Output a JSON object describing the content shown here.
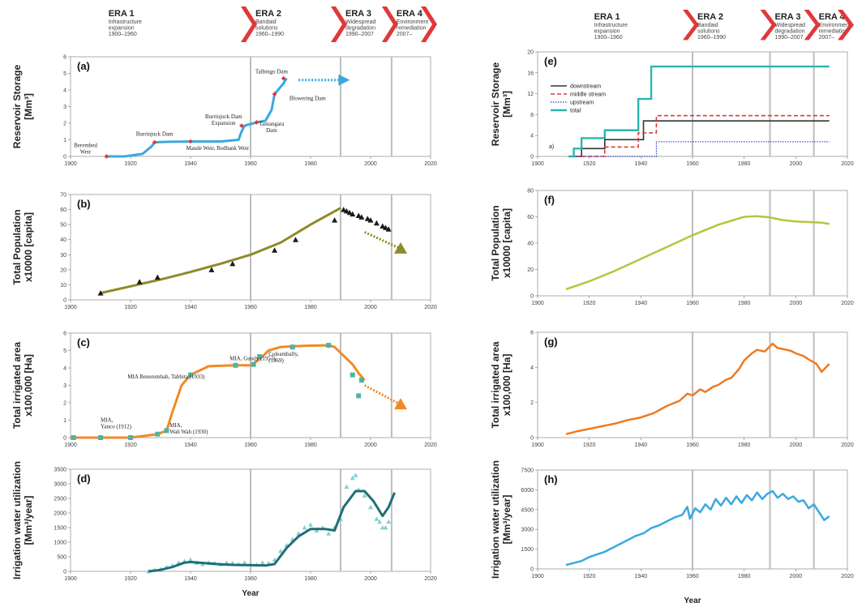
{
  "eras": [
    {
      "title": "ERA 1",
      "lines": [
        "Infrastructure",
        "expansion",
        "1900–1960"
      ]
    },
    {
      "title": "ERA 2",
      "lines": [
        "Bandaid",
        "solutions",
        "1960–1990"
      ]
    },
    {
      "title": "ERA 3",
      "lines": [
        "Widespread",
        "degradation",
        "1990–2007"
      ]
    },
    {
      "title": "ERA 4",
      "lines": [
        "Environment",
        "remediation",
        "2007–"
      ]
    }
  ],
  "era_boundaries": [
    1960,
    1990,
    2007
  ],
  "x_label": "Year",
  "colors": {
    "chevron": "#e0383b",
    "grid_boundary": "#bdbdbd",
    "storage": "#3aa9de",
    "storage_marker": "#e0383b",
    "population": "#8f8a2a",
    "population_marker": "#1a1a1a",
    "irrigated": "#f08a24",
    "irrigated_marker": "#4fb3a4",
    "water": "#1f6e7a",
    "water_marker": "#86d0d0",
    "pop_right": "#b8c43c",
    "irr_right": "#ee7a20",
    "water_right": "#3aa9de",
    "downstream": "#333333",
    "midstream": "#e0383b",
    "upstream": "#2f3fbf",
    "total": "#2bb5b0"
  },
  "chart_data": [
    {
      "id": "a",
      "panel_label": "(a)",
      "type": "line",
      "ylabel": "Reservoir Storage",
      "yunit": "[Mm³]",
      "xlim": [
        1900,
        2020
      ],
      "xticks": [
        1900,
        1920,
        1940,
        1960,
        1980,
        2000,
        2020
      ],
      "ylim": [
        0,
        6
      ],
      "yticks": [
        0,
        1,
        2,
        3,
        4,
        5,
        6
      ],
      "x": [
        1912,
        1918,
        1924,
        1927,
        1928,
        1932,
        1940,
        1950,
        1956,
        1957,
        1958,
        1962,
        1965,
        1967,
        1968,
        1971,
        1972
      ],
      "values": [
        0,
        0,
        0.15,
        0.6,
        0.85,
        0.88,
        0.9,
        0.9,
        1.0,
        1.5,
        1.85,
        2.05,
        2.15,
        2.8,
        3.75,
        4.4,
        4.7
      ],
      "markers": [
        {
          "x": 1912,
          "y": 0
        },
        {
          "x": 1928,
          "y": 0.85
        },
        {
          "x": 1940,
          "y": 0.9
        },
        {
          "x": 1957,
          "y": 1.85
        },
        {
          "x": 1962,
          "y": 2.05
        },
        {
          "x": 1968,
          "y": 3.75
        },
        {
          "x": 1971,
          "y": 4.7
        }
      ],
      "projection": {
        "from": [
          1976,
          4.6
        ],
        "to": [
          1992,
          4.6
        ]
      },
      "annotations": [
        {
          "x": 1905,
          "y": 0.55,
          "lines": [
            "Berembed",
            "Weir"
          ]
        },
        {
          "x": 1928,
          "y": 1.25,
          "lines": [
            "Burrinjuck Dam"
          ]
        },
        {
          "x": 1949,
          "y": 0.4,
          "lines": [
            "Maude Weir, Redbank Weir"
          ]
        },
        {
          "x": 1951,
          "y": 2.3,
          "lines": [
            "Burrinjuck Dam",
            "Expansion"
          ]
        },
        {
          "x": 1967,
          "y": 1.85,
          "lines": [
            "Tantangara",
            "Dam"
          ]
        },
        {
          "x": 1979,
          "y": 3.4,
          "lines": [
            "Blowering Dam"
          ]
        },
        {
          "x": 1967,
          "y": 5.0,
          "lines": [
            "Talbingo Dam"
          ]
        }
      ]
    },
    {
      "id": "b",
      "panel_label": "(b)",
      "type": "line",
      "ylabel": "Total Population",
      "yunit": "x10000 [capita]",
      "xlim": [
        1900,
        2020
      ],
      "xticks": [
        1900,
        1920,
        1940,
        1960,
        1980,
        2000,
        2020
      ],
      "ylim": [
        0,
        70
      ],
      "yticks": [
        0,
        10,
        20,
        30,
        40,
        50,
        60,
        70
      ],
      "x": [
        1910,
        1920,
        1930,
        1940,
        1950,
        1960,
        1970,
        1980,
        1990
      ],
      "values": [
        4.5,
        9,
        13.5,
        18.5,
        24,
        30,
        38,
        50,
        61
      ],
      "markers": [
        {
          "x": 1910,
          "y": 4.5
        },
        {
          "x": 1923,
          "y": 12
        },
        {
          "x": 1929,
          "y": 15
        },
        {
          "x": 1947,
          "y": 20
        },
        {
          "x": 1954,
          "y": 24
        },
        {
          "x": 1968,
          "y": 33
        },
        {
          "x": 1975,
          "y": 40
        },
        {
          "x": 1988,
          "y": 53
        },
        {
          "x": 1991,
          "y": 60
        },
        {
          "x": 1992,
          "y": 59
        },
        {
          "x": 1993,
          "y": 58
        },
        {
          "x": 1994,
          "y": 57
        },
        {
          "x": 1996,
          "y": 56
        },
        {
          "x": 1997,
          "y": 55
        },
        {
          "x": 1999,
          "y": 54
        },
        {
          "x": 2000,
          "y": 53
        },
        {
          "x": 2002,
          "y": 51
        },
        {
          "x": 2004,
          "y": 49
        },
        {
          "x": 2005,
          "y": 48
        },
        {
          "x": 2006,
          "y": 47
        }
      ],
      "projection": {
        "from": [
          1998,
          45
        ],
        "to": [
          2010,
          34
        ]
      }
    },
    {
      "id": "c",
      "panel_label": "(c)",
      "type": "line",
      "ylabel": "Total irrigated area",
      "yunit": "x100,000 [Ha]",
      "xlim": [
        1900,
        2020
      ],
      "xticks": [
        1900,
        1920,
        1940,
        1960,
        1980,
        2000,
        2020
      ],
      "ylim": [
        0,
        6
      ],
      "yticks": [
        0,
        1,
        2,
        3,
        4,
        5,
        6
      ],
      "x": [
        1900,
        1912,
        1920,
        1929,
        1932,
        1934,
        1937,
        1940,
        1946,
        1955,
        1960,
        1963,
        1966,
        1970,
        1975,
        1980,
        1986,
        1988,
        1991,
        1994,
        1996,
        1998
      ],
      "values": [
        0,
        0,
        0,
        0.2,
        0.4,
        1.5,
        3.0,
        3.6,
        4.1,
        4.15,
        4.15,
        4.5,
        5.0,
        5.2,
        5.25,
        5.28,
        5.3,
        5.2,
        4.7,
        4.2,
        3.7,
        3.3
      ],
      "markers": [
        {
          "x": 1901,
          "y": 0
        },
        {
          "x": 1910,
          "y": 0
        },
        {
          "x": 1920,
          "y": 0
        },
        {
          "x": 1929,
          "y": 0.2
        },
        {
          "x": 1932,
          "y": 0.4
        },
        {
          "x": 1940,
          "y": 3.6
        },
        {
          "x": 1955,
          "y": 4.15
        },
        {
          "x": 1961,
          "y": 4.2
        },
        {
          "x": 1963,
          "y": 4.65
        },
        {
          "x": 1974,
          "y": 5.2
        },
        {
          "x": 1986,
          "y": 5.3
        },
        {
          "x": 1994,
          "y": 3.6
        },
        {
          "x": 1997,
          "y": 3.3
        },
        {
          "x": 1996,
          "y": 2.4
        }
      ],
      "projection": {
        "from": [
          1998,
          3.0
        ],
        "to": [
          2010,
          1.9
        ]
      },
      "annotations": [
        {
          "x": 1910,
          "y": 0.9,
          "lines": [
            "MIA,",
            "Yanco (1912)"
          ]
        },
        {
          "x": 1919,
          "y": 3.4,
          "lines": [
            "MIA Benerembah, Tabbita (1933)"
          ]
        },
        {
          "x": 1953,
          "y": 4.45,
          "lines": [
            "MIA, Gundy (1957)"
          ]
        },
        {
          "x": 1966,
          "y": 4.7,
          "lines": [
            "Coleambally,",
            "(1969)"
          ]
        },
        {
          "x": 1933,
          "y": 0.6,
          "lines": [
            "MIA,",
            "Wah Wah (1930)"
          ]
        }
      ]
    },
    {
      "id": "d",
      "panel_label": "(d)",
      "type": "line",
      "ylabel": "Irrigation water utilization",
      "yunit": "[Mm³/year]",
      "xlim": [
        1900,
        2020
      ],
      "xticks": [
        1900,
        1920,
        1940,
        1960,
        1980,
        2000,
        2020
      ],
      "ylim": [
        0,
        3500
      ],
      "yticks": [
        0,
        500,
        1000,
        1500,
        2000,
        2500,
        3000,
        3500
      ],
      "x": [
        1926,
        1930,
        1934,
        1938,
        1940,
        1945,
        1950,
        1955,
        1960,
        1965,
        1968,
        1972,
        1976,
        1980,
        1985,
        1988,
        1991,
        1995,
        1998,
        2001,
        2004,
        2006,
        2008
      ],
      "values": [
        0,
        50,
        150,
        300,
        320,
        280,
        240,
        220,
        210,
        200,
        250,
        800,
        1200,
        1450,
        1450,
        1400,
        2200,
        2750,
        2750,
        2400,
        1900,
        2200,
        2700
      ],
      "scatter": [
        [
          1926,
          0
        ],
        [
          1928,
          50
        ],
        [
          1930,
          80
        ],
        [
          1932,
          150
        ],
        [
          1934,
          200
        ],
        [
          1936,
          300
        ],
        [
          1938,
          350
        ],
        [
          1940,
          400
        ],
        [
          1942,
          300
        ],
        [
          1944,
          250
        ],
        [
          1946,
          300
        ],
        [
          1948,
          280
        ],
        [
          1950,
          250
        ],
        [
          1952,
          300
        ],
        [
          1954,
          280
        ],
        [
          1956,
          250
        ],
        [
          1958,
          300
        ],
        [
          1960,
          250
        ],
        [
          1962,
          230
        ],
        [
          1964,
          300
        ],
        [
          1966,
          280
        ],
        [
          1968,
          400
        ],
        [
          1970,
          700
        ],
        [
          1972,
          900
        ],
        [
          1974,
          1100
        ],
        [
          1976,
          1300
        ],
        [
          1978,
          1500
        ],
        [
          1980,
          1600
        ],
        [
          1982,
          1400
        ],
        [
          1984,
          1500
        ],
        [
          1986,
          1300
        ],
        [
          1988,
          1500
        ],
        [
          1990,
          1800
        ],
        [
          1992,
          2900
        ],
        [
          1994,
          3200
        ],
        [
          1995,
          3300
        ],
        [
          1996,
          2800
        ],
        [
          1998,
          2600
        ],
        [
          2000,
          2200
        ],
        [
          2002,
          1800
        ],
        [
          2003,
          1700
        ],
        [
          2004,
          1500
        ],
        [
          2005,
          1500
        ],
        [
          2006,
          1700
        ]
      ]
    },
    {
      "id": "e",
      "panel_label": "(e)",
      "type": "line",
      "ylabel": "Reservoir Storage",
      "yunit": "[Mm³]",
      "xlim": [
        1900,
        2020
      ],
      "xticks": [
        1900,
        1920,
        1940,
        1960,
        1980,
        2000,
        2020
      ],
      "ylim": [
        0,
        20
      ],
      "yticks": [
        0,
        4,
        8,
        12,
        16,
        20
      ],
      "corner_label": "a)",
      "series": [
        {
          "name": "downstream",
          "step": [
            [
              1912,
              0
            ],
            [
              1917,
              1.5
            ],
            [
              1926,
              3.2
            ],
            [
              1941,
              6.8
            ],
            [
              2013,
              6.8
            ]
          ]
        },
        {
          "name": "middle stream",
          "step": [
            [
              1912,
              0
            ],
            [
              1926,
              1.8
            ],
            [
              1939,
              4.5
            ],
            [
              1946,
              7.8
            ],
            [
              2013,
              7.8
            ]
          ]
        },
        {
          "name": "upstream",
          "step": [
            [
              1912,
              0
            ],
            [
              1946,
              2.8
            ],
            [
              2013,
              2.8
            ]
          ]
        },
        {
          "name": "total",
          "step": [
            [
              1912,
              0
            ],
            [
              1914,
              1.5
            ],
            [
              1917,
              3.5
            ],
            [
              1926,
              5
            ],
            [
              1939,
              11
            ],
            [
              1944,
              17.2
            ],
            [
              2013,
              17.2
            ]
          ]
        }
      ]
    },
    {
      "id": "f",
      "panel_label": "(f)",
      "type": "line",
      "ylabel": "Total Population",
      "yunit": "x10000 [capita]",
      "xlim": [
        1900,
        2020
      ],
      "xticks": [
        1900,
        1920,
        1940,
        1960,
        1980,
        2000,
        2020
      ],
      "ylim": [
        0,
        80
      ],
      "yticks": [
        0,
        20,
        40,
        60,
        80
      ],
      "x": [
        1911,
        1920,
        1930,
        1940,
        1950,
        1960,
        1970,
        1980,
        1985,
        1990,
        1995,
        2000,
        2005,
        2010,
        2013
      ],
      "values": [
        5,
        11,
        19,
        28,
        37,
        46,
        54,
        60,
        60.5,
        59.5,
        57.5,
        56.5,
        56,
        55.5,
        54.5
      ]
    },
    {
      "id": "g",
      "panel_label": "(g)",
      "type": "line",
      "ylabel": "Total irrigated area",
      "yunit": "x100,000 [Ha]",
      "xlim": [
        1900,
        2020
      ],
      "xticks": [
        1900,
        1920,
        1940,
        1960,
        1980,
        2000,
        2020
      ],
      "ylim": [
        0,
        6
      ],
      "yticks": [
        0,
        2,
        4,
        6
      ],
      "x": [
        1911,
        1915,
        1920,
        1925,
        1930,
        1935,
        1940,
        1945,
        1950,
        1955,
        1958,
        1960,
        1963,
        1965,
        1968,
        1970,
        1973,
        1975,
        1978,
        1980,
        1983,
        1985,
        1988,
        1990,
        1991,
        1993,
        1995,
        1998,
        2000,
        2003,
        2005,
        2008,
        2010,
        2011,
        2013
      ],
      "values": [
        0.2,
        0.35,
        0.5,
        0.65,
        0.8,
        1.0,
        1.15,
        1.4,
        1.8,
        2.1,
        2.5,
        2.4,
        2.75,
        2.6,
        2.9,
        3.0,
        3.3,
        3.4,
        3.9,
        4.4,
        4.8,
        5.0,
        4.9,
        5.2,
        5.35,
        5.1,
        5.05,
        4.95,
        4.8,
        4.65,
        4.45,
        4.2,
        3.75,
        3.9,
        4.2
      ]
    },
    {
      "id": "h",
      "panel_label": "(h)",
      "type": "line",
      "ylabel": "Irrigation water utilization",
      "yunit": "[Mm³/year]",
      "xlim": [
        1900,
        2020
      ],
      "xticks": [
        1900,
        1920,
        1940,
        1960,
        1980,
        2000,
        2020
      ],
      "ylim": [
        0,
        7500
      ],
      "yticks": [
        0,
        1500,
        3000,
        4500,
        6000,
        7500
      ],
      "x": [
        1911,
        1914,
        1917,
        1920,
        1923,
        1926,
        1929,
        1932,
        1935,
        1938,
        1941,
        1944,
        1947,
        1950,
        1953,
        1956,
        1958,
        1959,
        1961,
        1963,
        1965,
        1967,
        1969,
        1971,
        1973,
        1975,
        1977,
        1979,
        1981,
        1983,
        1985,
        1987,
        1989,
        1991,
        1993,
        1995,
        1997,
        1999,
        2001,
        2003,
        2005,
        2007,
        2009,
        2011,
        2013
      ],
      "values": [
        300,
        450,
        600,
        900,
        1100,
        1300,
        1600,
        1900,
        2200,
        2500,
        2700,
        3100,
        3300,
        3600,
        3900,
        4100,
        4700,
        3800,
        4600,
        4300,
        4900,
        4500,
        5300,
        4800,
        5400,
        4900,
        5500,
        5000,
        5600,
        5200,
        5800,
        5300,
        5700,
        5900,
        5400,
        5700,
        5300,
        5500,
        5100,
        5200,
        4600,
        4900,
        4300,
        3700,
        4000
      ]
    }
  ]
}
